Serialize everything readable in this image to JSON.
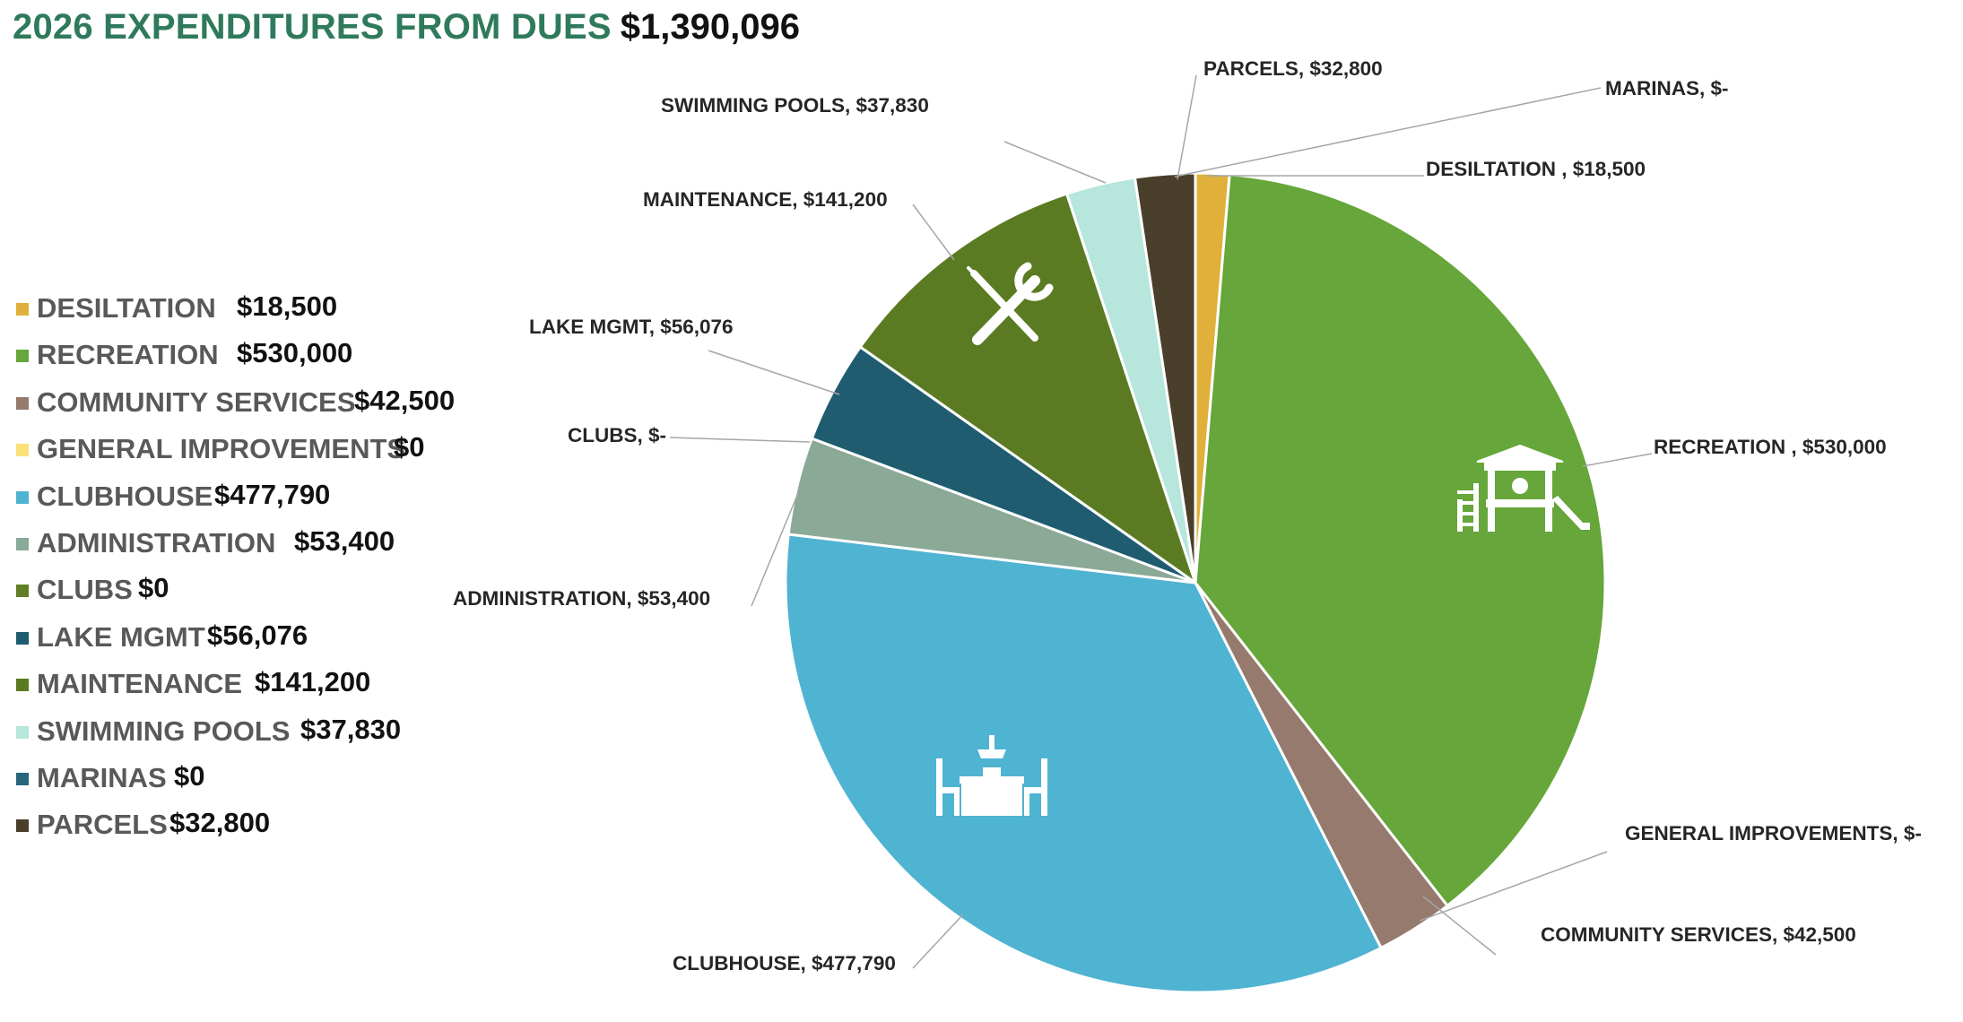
{
  "title": {
    "prefix": "2026 EXPENDITURES FROM DUES",
    "total": "$1,390,096"
  },
  "legend": [
    {
      "label": "DESILTATION",
      "value": "$18,500",
      "color": "#e0b03a"
    },
    {
      "label": "RECREATION",
      "value": "$530,000",
      "color": "#66a63a"
    },
    {
      "label": "COMMUNITY SERVICES",
      "value": "$42,500",
      "color": "#957a6d"
    },
    {
      "label": "GENERAL IMPROVEMENTS",
      "value": "$0",
      "color": "#fbe07a"
    },
    {
      "label": "CLUBHOUSE",
      "value": "$477,790",
      "color": "#4fb3d2"
    },
    {
      "label": "ADMINISTRATION",
      "value": "$53,400",
      "color": "#8aa996"
    },
    {
      "label": "CLUBS",
      "value": "$0",
      "color": "#5f7e25"
    },
    {
      "label": "LAKE MGMT",
      "value": "$56,076",
      "color": "#1f5c70"
    },
    {
      "label": "MAINTENANCE",
      "value": "$141,200",
      "color": "#5b7b22"
    },
    {
      "label": "SWIMMING POOLS",
      "value": "$37,830",
      "color": "#b6e6dc"
    },
    {
      "label": "MARINAS",
      "value": "$0",
      "color": "#29657d"
    },
    {
      "label": "PARCELS",
      "value": "$32,800",
      "color": "#4a3f2a"
    }
  ],
  "chart_data": {
    "type": "pie",
    "title": "2026 EXPENDITURES FROM DUES $1,390,096",
    "slices": [
      {
        "name": "DESILTATION",
        "value": 18500,
        "label": "DESILTATION ,  $18,500",
        "color": "#e0b03a"
      },
      {
        "name": "RECREATION",
        "value": 530000,
        "label": "RECREATION ,  $530,000",
        "color": "#66a63a",
        "icon": "playground-icon"
      },
      {
        "name": "GENERAL IMPROVEMENTS",
        "value": 0,
        "label": "GENERAL IMPROVEMENTS,  $-",
        "color": "#fbe07a"
      },
      {
        "name": "COMMUNITY SERVICES",
        "value": 42500,
        "label": "COMMUNITY SERVICES,  $42,500",
        "color": "#957a6d"
      },
      {
        "name": "CLUBHOUSE",
        "value": 477790,
        "label": "CLUBHOUSE,  $477,790",
        "color": "#4fb3d2",
        "icon": "dining-table-icon"
      },
      {
        "name": "ADMINISTRATION",
        "value": 53400,
        "label": "ADMINISTRATION,  $53,400",
        "color": "#8aa996"
      },
      {
        "name": "CLUBS",
        "value": 0,
        "label": "CLUBS,  $-",
        "color": "#5f7e25"
      },
      {
        "name": "LAKE MGMT",
        "value": 56076,
        "label": "LAKE MGMT,  $56,076",
        "color": "#1f5c70"
      },
      {
        "name": "MAINTENANCE",
        "value": 141200,
        "label": "MAINTENANCE,  $141,200",
        "color": "#5b7b22",
        "icon": "tools-icon"
      },
      {
        "name": "SWIMMING POOLS",
        "value": 37830,
        "label": "SWIMMING POOLS,  $37,830",
        "color": "#b6e6dc"
      },
      {
        "name": "MARINAS",
        "value": 0,
        "label": "MARINAS,  $-",
        "color": "#29657d"
      },
      {
        "name": "PARCELS",
        "value": 32800,
        "label": "PARCELS,  $32,800",
        "color": "#4a3f2a"
      }
    ]
  }
}
